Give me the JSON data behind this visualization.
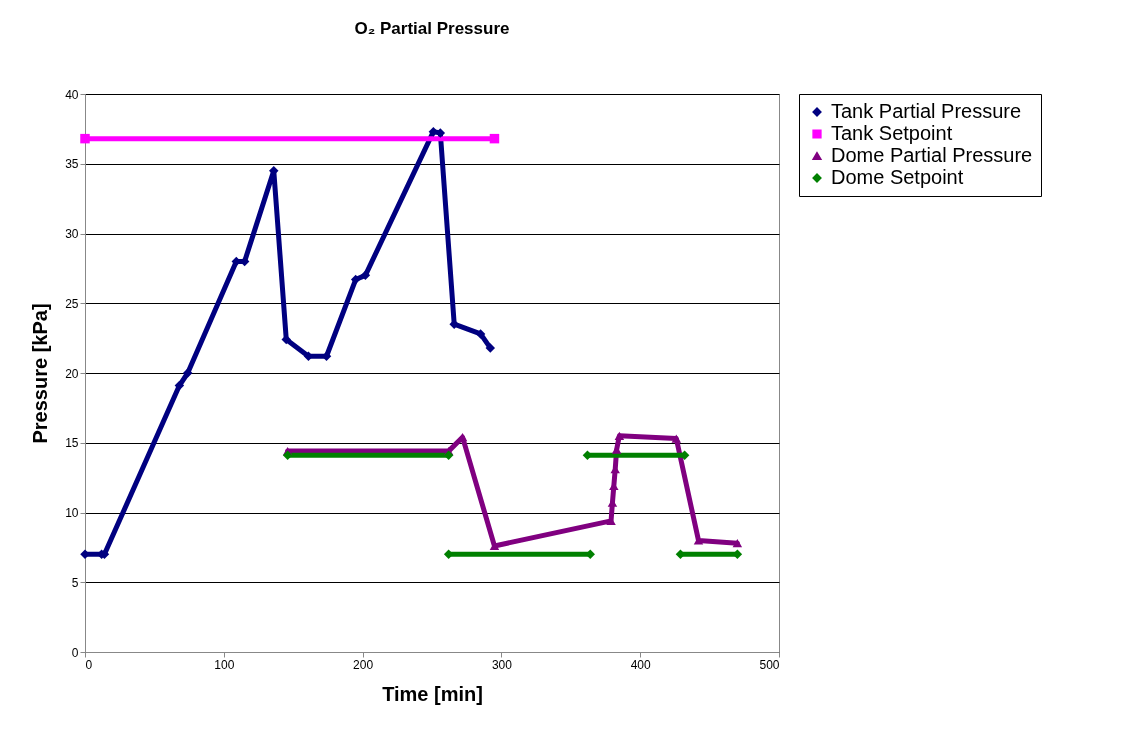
{
  "chart_data": {
    "type": "line",
    "title": "O₂ Partial Pressure",
    "xlabel": "Time [min]",
    "ylabel": "Pressure [kPa]",
    "xlim": [
      0,
      500
    ],
    "xticks": [
      0,
      100,
      200,
      300,
      400,
      500
    ],
    "ylim": [
      0,
      40
    ],
    "yticks": [
      0,
      5,
      10,
      15,
      20,
      25,
      30,
      35,
      40
    ],
    "grid": "y",
    "legend": "right",
    "series": [
      {
        "name": "Tank Partial Pressure",
        "color": "#000080",
        "marker": "diamond",
        "x": [
          0,
          12,
          14,
          68,
          74,
          109,
          115,
          136,
          145,
          161,
          174,
          195,
          202,
          251,
          256,
          266,
          285,
          292
        ],
        "values": [
          7.0,
          7.0,
          7.0,
          19.1,
          20.0,
          28.0,
          28.0,
          34.5,
          22.4,
          21.2,
          21.2,
          26.7,
          27.0,
          37.3,
          37.2,
          23.5,
          22.8,
          21.8
        ]
      },
      {
        "name": "Tank Setpoint",
        "color": "#ff00ff",
        "marker": "square",
        "x": [
          0,
          295
        ],
        "values": [
          36.8,
          36.8
        ]
      },
      {
        "name": "Dome Partial Pressure",
        "color": "#800080",
        "marker": "triangle",
        "x": [
          146,
          262,
          272,
          295,
          379,
          380,
          381,
          382,
          383,
          385,
          426,
          442,
          470
        ],
        "values": [
          14.4,
          14.4,
          15.4,
          7.6,
          9.4,
          10.7,
          11.9,
          13.1,
          14.5,
          15.5,
          15.3,
          8.0,
          7.8
        ]
      },
      {
        "name": "Dome Setpoint",
        "color": "#008000",
        "marker": "diamond",
        "x": [
          146,
          262,
          null,
          262,
          364,
          null,
          362,
          432,
          null,
          429,
          470
        ],
        "values": [
          14.1,
          14.1,
          null,
          7.0,
          7.0,
          null,
          14.1,
          14.1,
          null,
          7.0,
          7.0
        ]
      }
    ]
  }
}
